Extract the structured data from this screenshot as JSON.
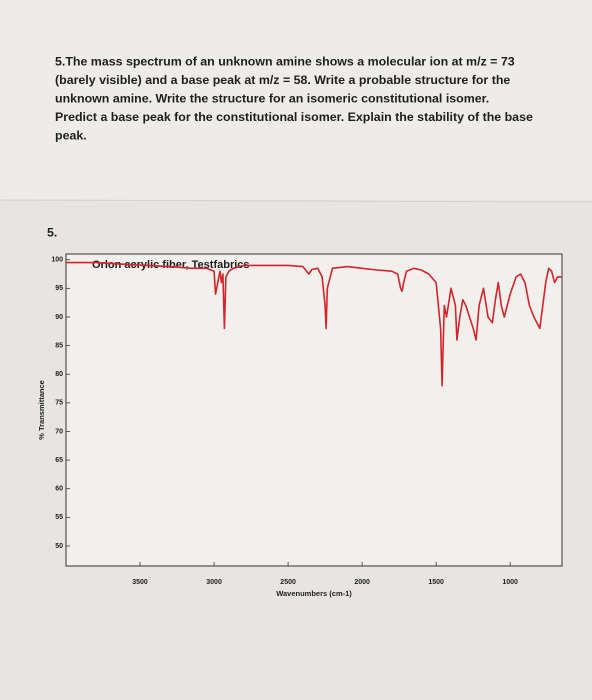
{
  "question": {
    "lines": [
      "5.The mass spectrum of an unknown amine shows a molecular ion at m/z = 73",
      "(barely visible) and a base peak at m/z = 58.  Write a probable structure for the",
      "unknown amine.   Write the structure for an isomeric constitutional isomer.",
      "Predict a base peak for the constitutional isomer.  Explain the stability of the base",
      "peak."
    ]
  },
  "item_number": "5.",
  "chart_data": {
    "type": "line",
    "title": "Orlon acrylic fiber, Testfabrics",
    "x_label": "Wavenumbers (cm-1)",
    "y_label": "% Transmittance",
    "xlim": [
      4000,
      650
    ],
    "ylim": [
      46.5,
      101
    ],
    "xticks": [
      3500,
      3000,
      2500,
      2000,
      1500,
      1000
    ],
    "yticks": [
      100,
      95,
      90,
      85,
      80,
      75,
      70,
      65,
      60,
      55,
      50
    ],
    "series": [
      {
        "name": "spectrum",
        "color": "#d4242b",
        "x": [
          4000,
          3800,
          3600,
          3450,
          3300,
          3150,
          3050,
          3000,
          2990,
          2960,
          2950,
          2940,
          2930,
          2920,
          2900,
          2870,
          2800,
          2700,
          2500,
          2400,
          2360,
          2340,
          2300,
          2270,
          2250,
          2243,
          2235,
          2200,
          2100,
          2000,
          1900,
          1800,
          1760,
          1740,
          1730,
          1720,
          1700,
          1650,
          1600,
          1550,
          1500,
          1470,
          1460,
          1452,
          1445,
          1430,
          1400,
          1370,
          1360,
          1340,
          1320,
          1300,
          1250,
          1230,
          1210,
          1180,
          1150,
          1120,
          1100,
          1080,
          1060,
          1040,
          1000,
          960,
          930,
          900,
          870,
          840,
          800,
          780,
          760,
          740,
          720,
          700,
          680,
          650
        ],
        "values": [
          99.5,
          99.5,
          99.2,
          99,
          98.8,
          98.5,
          98.5,
          98,
          94,
          98,
          96,
          97.5,
          88,
          97,
          98,
          98.5,
          99,
          99,
          99,
          98.8,
          97.5,
          98.3,
          98.5,
          97,
          92,
          88,
          95,
          98.5,
          98.8,
          98.5,
          98.2,
          98,
          97.5,
          95,
          94.5,
          96,
          98,
          98.5,
          98.2,
          97.5,
          96,
          88,
          78,
          86,
          92,
          90,
          95,
          92,
          86,
          90,
          93,
          92,
          88,
          86,
          92,
          95,
          90,
          89,
          93,
          96,
          92,
          90,
          94,
          97,
          97.5,
          96,
          92,
          90,
          88,
          92,
          96,
          98.5,
          98,
          96,
          97,
          97
        ]
      }
    ]
  }
}
